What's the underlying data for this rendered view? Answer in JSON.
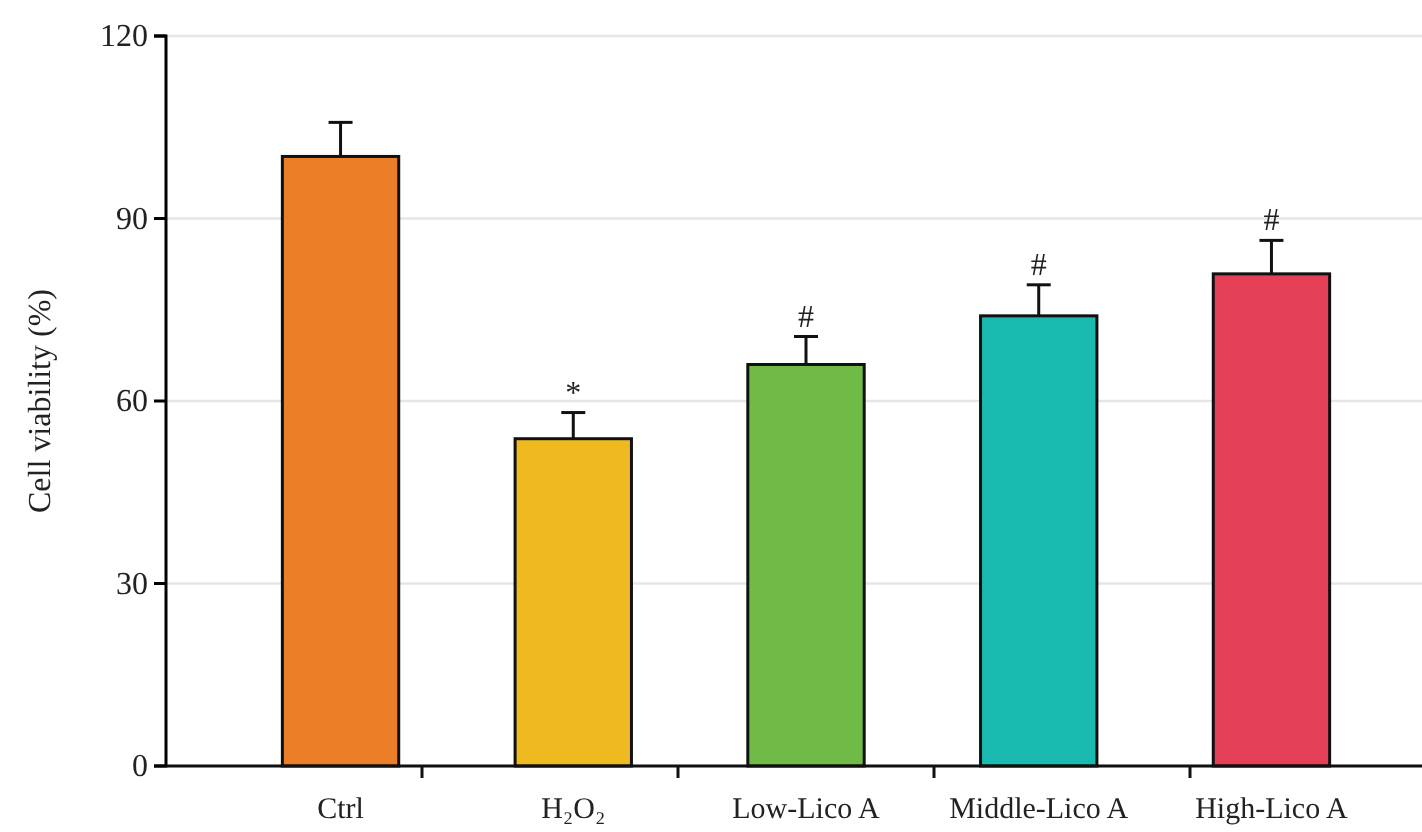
{
  "chart_data": {
    "type": "bar",
    "ylabel": "Cell viability (%)",
    "categories": [
      "Ctrl",
      "H₂O₂",
      "Low-Lico A",
      "Middle-Lico A",
      "High-Lico A"
    ],
    "values": [
      100.2,
      53.8,
      66,
      74,
      80.9
    ],
    "errors": [
      5.6,
      4.3,
      4.6,
      5.1,
      5.5
    ],
    "colors": [
      "#ec7e27",
      "#efb920",
      "#70bb45",
      "#19bbb1",
      "#e33f57"
    ],
    "ylim": [
      0,
      120
    ],
    "yticks": [
      0,
      30,
      60,
      90,
      120
    ],
    "grid": "y",
    "annotations": [
      {
        "text": "*",
        "x": "H₂O₂",
        "y": 58.1
      },
      {
        "text": "#",
        "x": "Low-Lico A",
        "y": 70.6
      },
      {
        "text": "#",
        "x": "Middle-Lico A",
        "y": 79.1
      },
      {
        "text": "#",
        "x": "High-Lico A",
        "y": 86.4
      }
    ]
  }
}
